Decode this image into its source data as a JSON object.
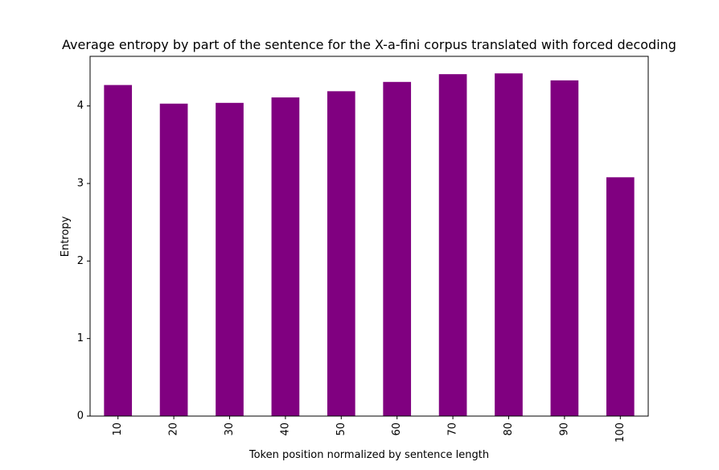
{
  "chart_data": {
    "type": "bar",
    "title": "Average entropy by part of the sentence for the X-a-fini corpus translated with forced decoding",
    "xlabel": "Token position normalized by sentence length",
    "ylabel": "Entropy",
    "categories": [
      "10",
      "20",
      "30",
      "40",
      "50",
      "60",
      "70",
      "80",
      "90",
      "100"
    ],
    "values": [
      4.27,
      4.03,
      4.04,
      4.11,
      4.19,
      4.31,
      4.41,
      4.42,
      4.33,
      3.08
    ],
    "ylim": [
      0,
      4.64
    ],
    "yticks": [
      "0",
      "1",
      "2",
      "3",
      "4"
    ],
    "bar_color": "#800080",
    "grid": false,
    "legend": false,
    "xtick_rotation": "vertical"
  }
}
